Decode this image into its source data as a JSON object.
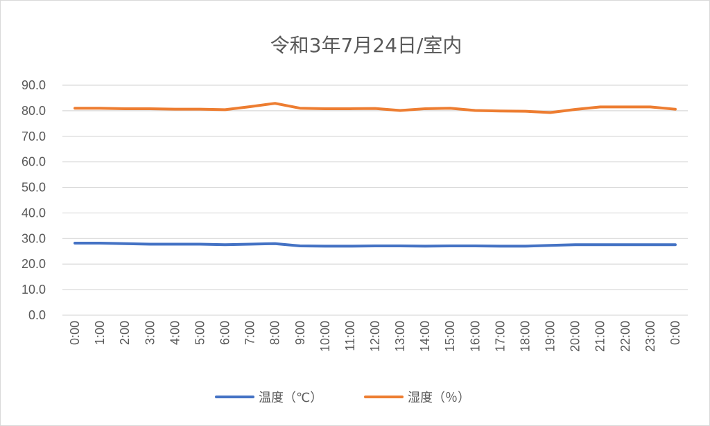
{
  "chart_data": {
    "type": "line",
    "title": "令和3年7月24日/室内",
    "xlabel": "",
    "ylabel": "",
    "categories": [
      "0:00",
      "1:00",
      "2:00",
      "3:00",
      "4:00",
      "5:00",
      "6:00",
      "7:00",
      "8:00",
      "9:00",
      "10:00",
      "11:00",
      "12:00",
      "13:00",
      "14:00",
      "15:00",
      "16:00",
      "17:00",
      "18:00",
      "19:00",
      "20:00",
      "21:00",
      "22:00",
      "23:00",
      "0:00"
    ],
    "series": [
      {
        "name": "温度（℃）",
        "color": "#4472C4",
        "values": [
          28.2,
          28.2,
          28.0,
          27.8,
          27.8,
          27.8,
          27.6,
          27.8,
          28.0,
          27.1,
          27.0,
          27.0,
          27.1,
          27.1,
          27.0,
          27.1,
          27.1,
          27.0,
          27.0,
          27.3,
          27.6,
          27.6,
          27.6,
          27.6,
          27.6
        ]
      },
      {
        "name": "湿度（％）",
        "color": "#ED7D31",
        "values": [
          81.0,
          81.0,
          80.8,
          80.8,
          80.6,
          80.6,
          80.4,
          81.6,
          82.9,
          81.0,
          80.8,
          80.8,
          80.9,
          80.1,
          80.8,
          81.0,
          80.1,
          79.9,
          79.8,
          79.3,
          80.5,
          81.5,
          81.5,
          81.5,
          80.6
        ]
      }
    ],
    "ylim": [
      0,
      90
    ],
    "yticks": [
      "0.0",
      "10.0",
      "20.0",
      "30.0",
      "40.0",
      "50.0",
      "60.0",
      "70.0",
      "80.0",
      "90.0"
    ],
    "grid": true,
    "legend": "bottom"
  }
}
